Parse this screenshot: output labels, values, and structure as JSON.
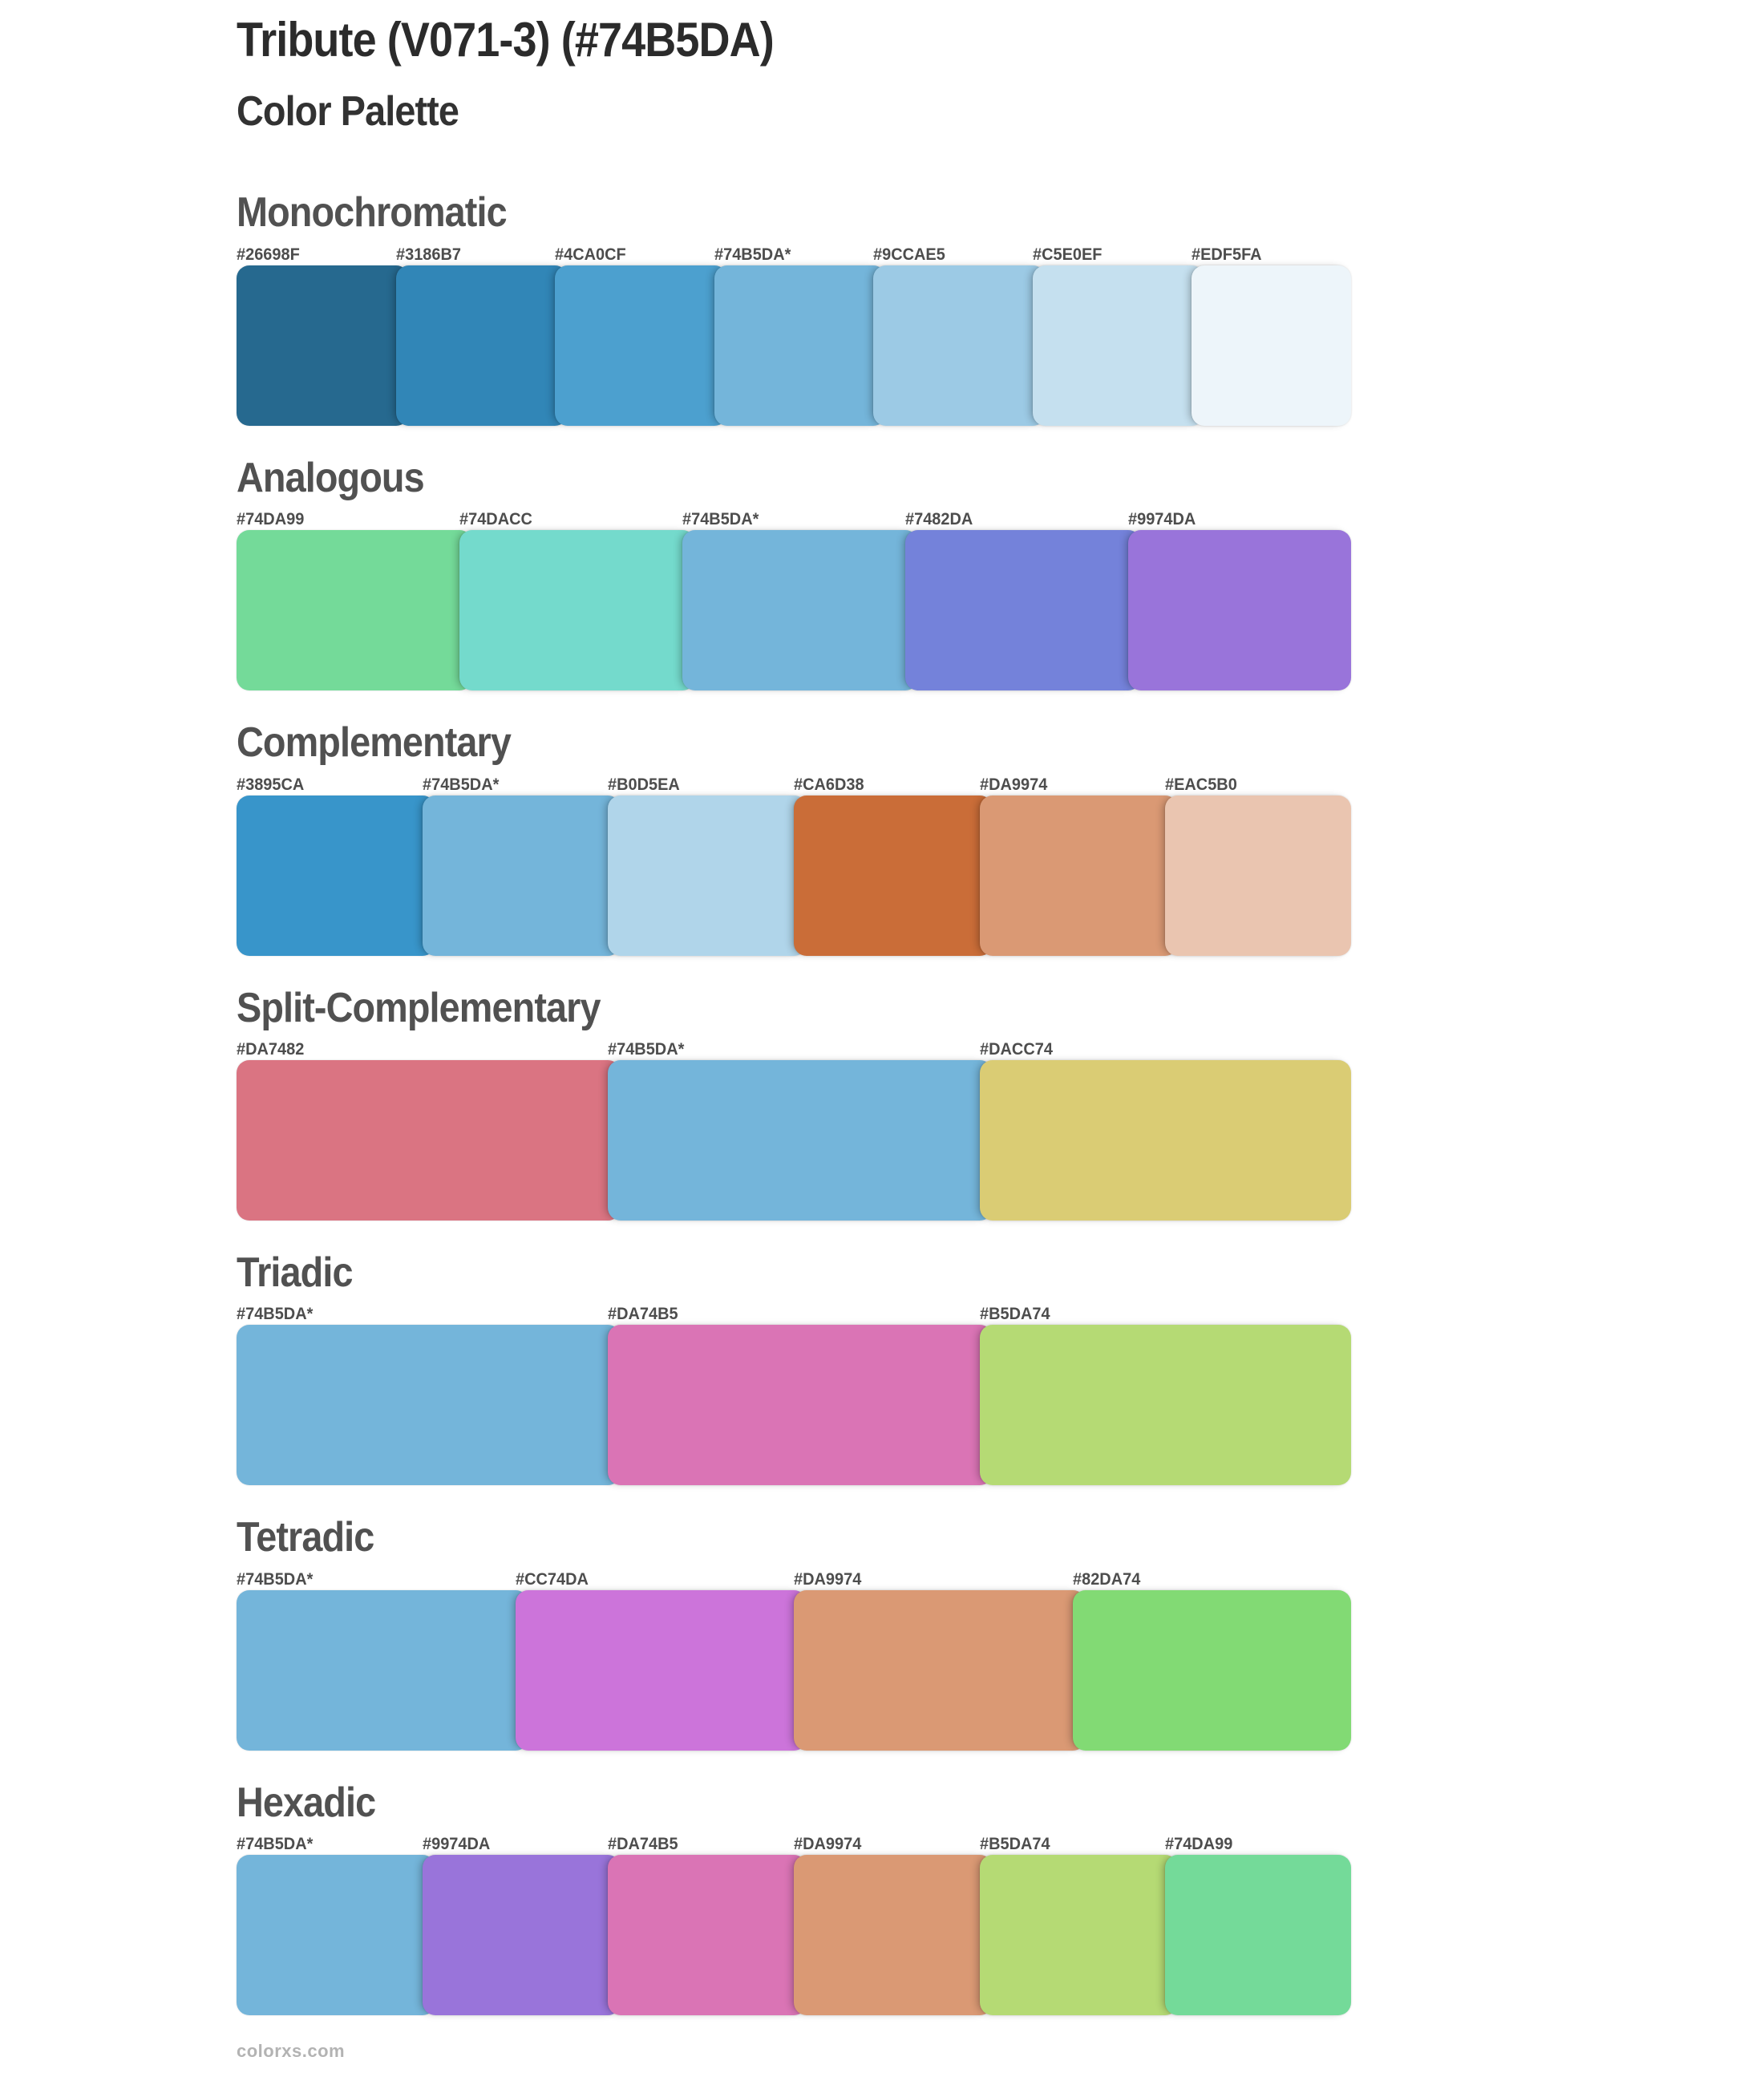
{
  "page": {
    "title": "Tribute (V071-3) (#74B5DA)",
    "subtitle": "Color Palette",
    "base_color": "#74B5DA",
    "watermark": "colorxs.com"
  },
  "sections": [
    {
      "name": "Monochromatic",
      "swatches": [
        {
          "label": "#26698F",
          "hex": "#26698F"
        },
        {
          "label": "#3186B7",
          "hex": "#3186B7"
        },
        {
          "label": "#4CA0CF",
          "hex": "#4CA0CF"
        },
        {
          "label": "#74B5DA*",
          "hex": "#74B5DA"
        },
        {
          "label": "#9CCAE5",
          "hex": "#9CCAE5"
        },
        {
          "label": "#C5E0EF",
          "hex": "#C5E0EF"
        },
        {
          "label": "#EDF5FA",
          "hex": "#EDF5FA"
        }
      ]
    },
    {
      "name": "Analogous",
      "swatches": [
        {
          "label": "#74DA99",
          "hex": "#74DA99"
        },
        {
          "label": "#74DACC",
          "hex": "#74DACC"
        },
        {
          "label": "#74B5DA*",
          "hex": "#74B5DA"
        },
        {
          "label": "#7482DA",
          "hex": "#7482DA"
        },
        {
          "label": "#9974DA",
          "hex": "#9974DA"
        }
      ]
    },
    {
      "name": "Complementary",
      "swatches": [
        {
          "label": "#3895CA",
          "hex": "#3895CA"
        },
        {
          "label": "#74B5DA*",
          "hex": "#74B5DA"
        },
        {
          "label": "#B0D5EA",
          "hex": "#B0D5EA"
        },
        {
          "label": "#CA6D38",
          "hex": "#CA6D38"
        },
        {
          "label": "#DA9974",
          "hex": "#DA9974"
        },
        {
          "label": "#EAC5B0",
          "hex": "#EAC5B0"
        }
      ]
    },
    {
      "name": "Split-Complementary",
      "swatches": [
        {
          "label": "#DA7482",
          "hex": "#DA7482"
        },
        {
          "label": "#74B5DA*",
          "hex": "#74B5DA"
        },
        {
          "label": "#DACC74",
          "hex": "#DACC74"
        }
      ]
    },
    {
      "name": "Triadic",
      "swatches": [
        {
          "label": "#74B5DA*",
          "hex": "#74B5DA"
        },
        {
          "label": "#DA74B5",
          "hex": "#DA74B5"
        },
        {
          "label": "#B5DA74",
          "hex": "#B5DA74"
        }
      ]
    },
    {
      "name": "Tetradic",
      "swatches": [
        {
          "label": "#74B5DA*",
          "hex": "#74B5DA"
        },
        {
          "label": "#CC74DA",
          "hex": "#CC74DA"
        },
        {
          "label": "#DA9974",
          "hex": "#DA9974"
        },
        {
          "label": "#82DA74",
          "hex": "#82DA74"
        }
      ]
    },
    {
      "name": "Hexadic",
      "swatches": [
        {
          "label": "#74B5DA*",
          "hex": "#74B5DA"
        },
        {
          "label": "#9974DA",
          "hex": "#9974DA"
        },
        {
          "label": "#DA74B5",
          "hex": "#DA74B5"
        },
        {
          "label": "#DA9974",
          "hex": "#DA9974"
        },
        {
          "label": "#B5DA74",
          "hex": "#B5DA74"
        },
        {
          "label": "#74DA99",
          "hex": "#74DA99"
        }
      ]
    }
  ]
}
